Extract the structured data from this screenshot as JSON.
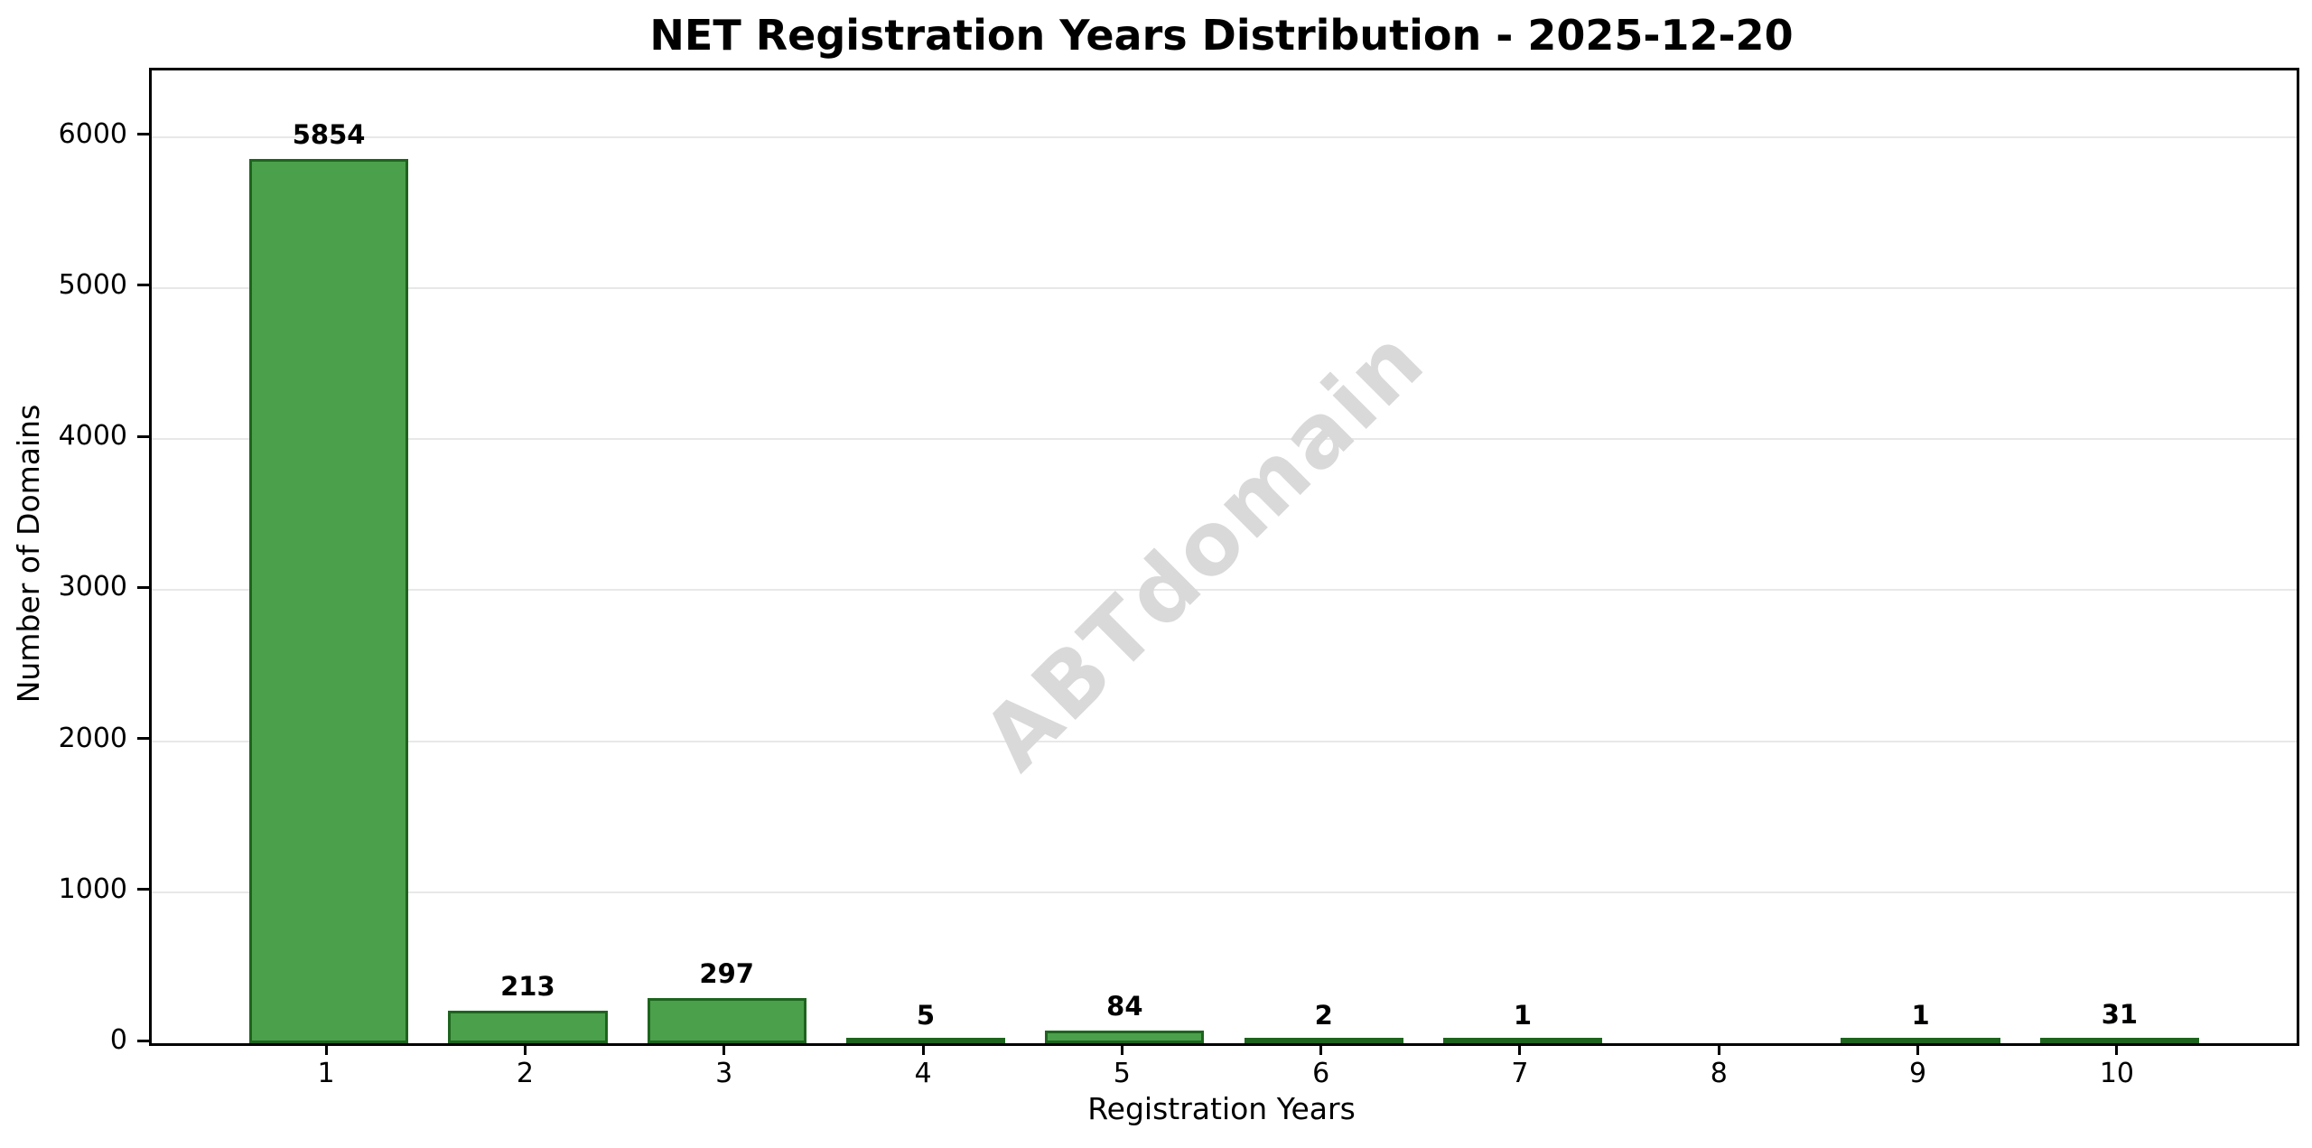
{
  "chart_data": {
    "type": "bar",
    "title": "NET Registration Years Distribution - 2025-12-20",
    "xlabel": "Registration Years",
    "ylabel": "Number of Domains",
    "categories": [
      "1",
      "2",
      "3",
      "4",
      "5",
      "6",
      "7",
      "8",
      "9",
      "10"
    ],
    "values": [
      5854,
      213,
      297,
      5,
      84,
      2,
      1,
      0,
      1,
      31
    ],
    "bar_labels": [
      "5854",
      "213",
      "297",
      "5",
      "84",
      "2",
      "1",
      "",
      "1",
      "31"
    ],
    "yticks": [
      0,
      1000,
      2000,
      3000,
      4000,
      5000,
      6000
    ],
    "ylim": [
      0,
      6441
    ],
    "xlim": [
      0.11,
      10.89
    ],
    "bar_width": 0.8,
    "grid": "horizontal-only",
    "legend": "none",
    "watermark": "ABTdomain",
    "colors": {
      "bar_fill": "#4ba04b",
      "bar_edge": "#1e641e",
      "gridline": "#e8e8e8",
      "axis": "#000000",
      "text": "#000000",
      "watermark": "#d9d9d9",
      "background": "#ffffff"
    }
  }
}
